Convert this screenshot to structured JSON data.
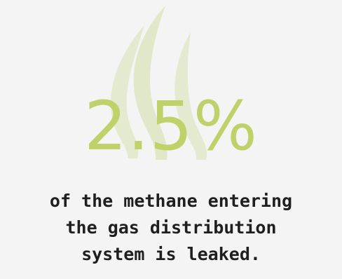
{
  "stat": {
    "value": "2.5%"
  },
  "caption": {
    "text": "of the methane entering\nthe gas distribution\nsystem is leaked."
  },
  "colors": {
    "background": "#f3f4f3",
    "accent": "#bed269",
    "smoke": "#e4ead0",
    "text": "#1f1f1f"
  },
  "icons": {
    "background": "smoke-wisps-icon"
  }
}
